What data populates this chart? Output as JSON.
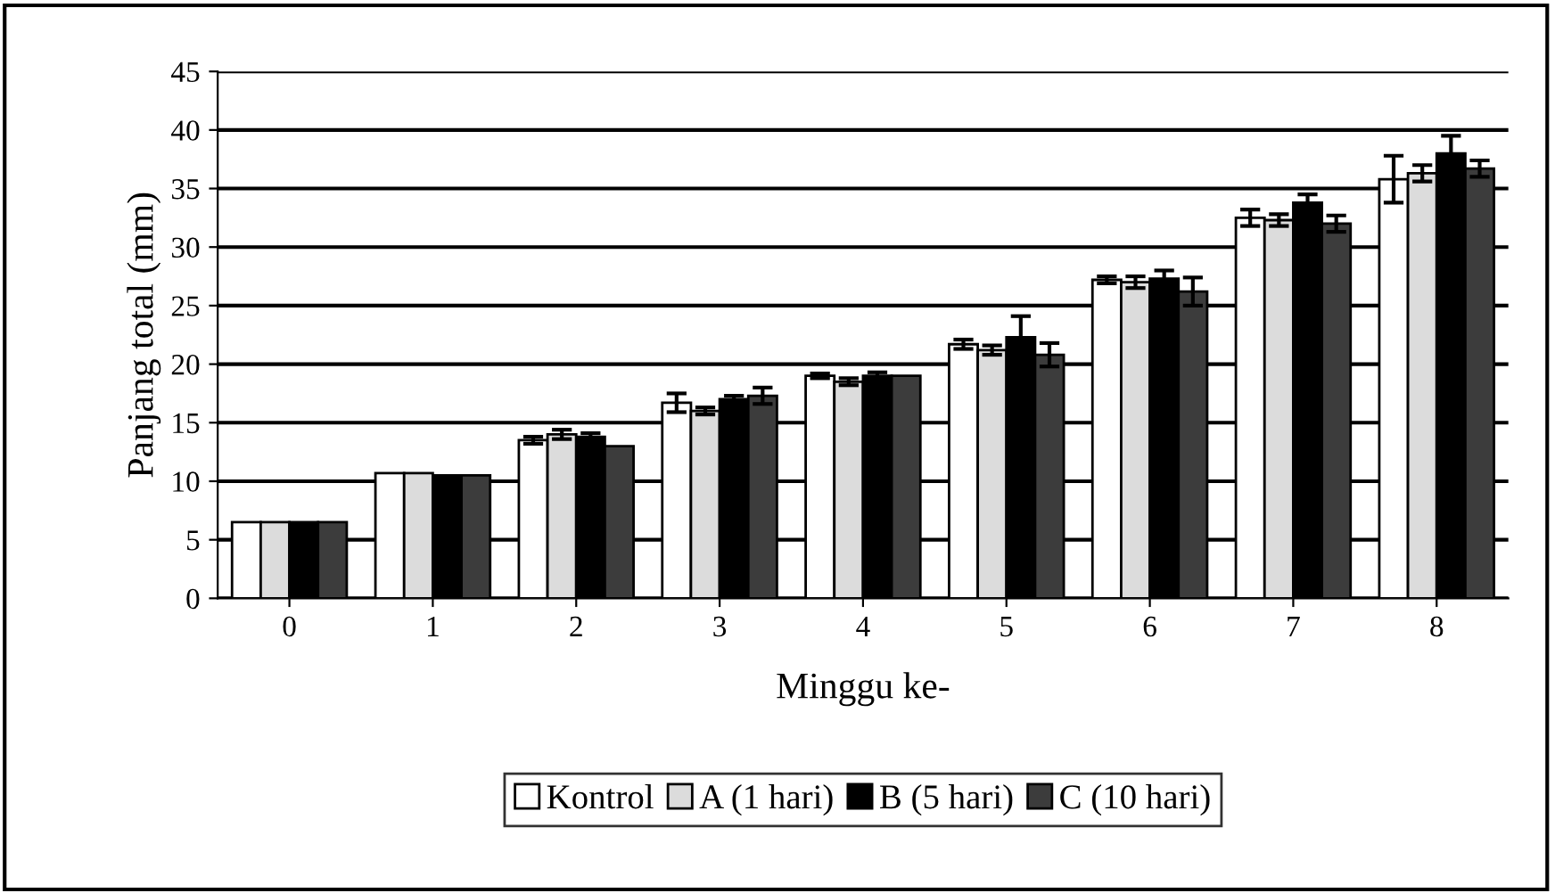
{
  "chart_data": {
    "type": "bar",
    "xlabel": "Minggu ke-",
    "ylabel": "Panjang total (mm)",
    "categories": [
      "0",
      "1",
      "2",
      "3",
      "4",
      "5",
      "6",
      "7",
      "8"
    ],
    "series": [
      {
        "name": "Kontrol",
        "color": "#ffffff",
        "values": [
          6.5,
          10.7,
          13.5,
          16.7,
          19.0,
          21.7,
          27.2,
          32.5,
          35.8
        ],
        "errors": [
          null,
          null,
          0.3,
          0.8,
          0.2,
          0.4,
          0.3,
          0.7,
          2.0
        ]
      },
      {
        "name": "A (1 hari)",
        "color": "#dcdcdc",
        "values": [
          6.5,
          10.7,
          14.0,
          16.0,
          18.5,
          21.2,
          27.0,
          32.3,
          36.3
        ],
        "errors": [
          null,
          null,
          0.4,
          0.3,
          0.3,
          0.4,
          0.5,
          0.5,
          0.7
        ]
      },
      {
        "name": "B (5 hari)",
        "color": "#000000",
        "values": [
          6.5,
          10.5,
          13.8,
          17.0,
          19.0,
          22.3,
          27.3,
          33.8,
          38.0
        ],
        "errors": [
          null,
          null,
          0.3,
          0.3,
          0.3,
          1.8,
          0.7,
          0.7,
          1.5
        ]
      },
      {
        "name": "C (10 hari)",
        "color": "#3c3c3c",
        "values": [
          6.5,
          10.5,
          13.0,
          17.3,
          19.0,
          20.8,
          26.2,
          32.0,
          36.7
        ],
        "errors": [
          null,
          null,
          null,
          0.7,
          null,
          1.0,
          1.2,
          0.7,
          0.7
        ]
      }
    ],
    "ylim": [
      0,
      45
    ],
    "yticks": [
      0,
      5,
      10,
      15,
      20,
      25,
      30,
      35,
      40,
      45
    ],
    "grid": "y",
    "legend": "bottom"
  }
}
